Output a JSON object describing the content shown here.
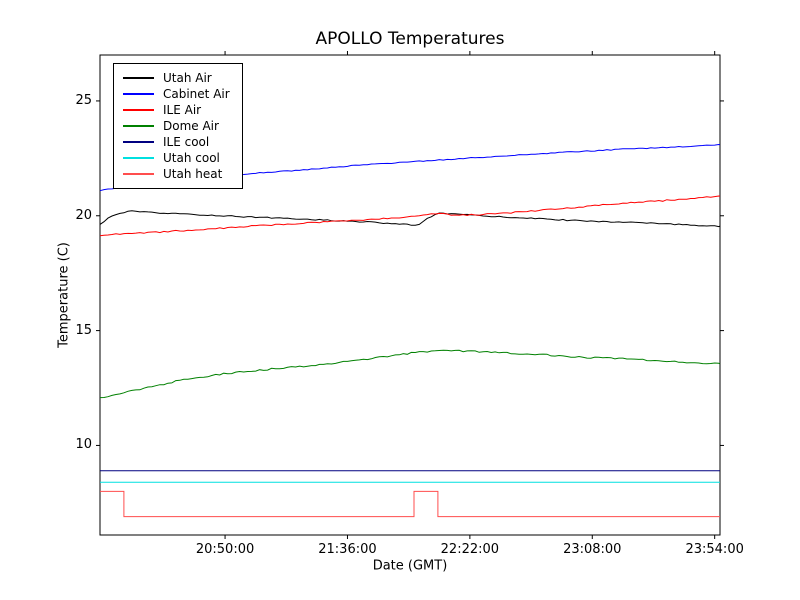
{
  "chart_data": {
    "type": "line",
    "title": "APOLLO Temperatures",
    "xlabel": "Date (GMT)",
    "ylabel": "Temperature (C)",
    "legend_position": "upper-left",
    "grid": false,
    "axis_color": "#000000",
    "background_color": "#ffffff",
    "x_unit": "minutes after 20:00:00 GMT",
    "xlim": [
      3,
      236
    ],
    "ylim": [
      6.1,
      27.0
    ],
    "y_ticks": [
      {
        "value": 10,
        "label": "10"
      },
      {
        "value": 15,
        "label": "15"
      },
      {
        "value": 20,
        "label": "20"
      },
      {
        "value": 25,
        "label": "25"
      }
    ],
    "x_ticks": [
      {
        "value": 50,
        "label": "20:50:00"
      },
      {
        "value": 96,
        "label": "21:36:00"
      },
      {
        "value": 142,
        "label": "22:22:00"
      },
      {
        "value": 188,
        "label": "23:08:00"
      },
      {
        "value": 234,
        "label": "23:54:00"
      }
    ],
    "series": [
      {
        "name": "Utah Air",
        "color": "#000000",
        "noise": 0.025,
        "points": [
          [
            3,
            19.6
          ],
          [
            6,
            19.9
          ],
          [
            10,
            20.1
          ],
          [
            14,
            20.2
          ],
          [
            25,
            20.12
          ],
          [
            45,
            20.02
          ],
          [
            70,
            19.9
          ],
          [
            90,
            19.8
          ],
          [
            105,
            19.72
          ],
          [
            115,
            19.65
          ],
          [
            120,
            19.6
          ],
          [
            122,
            19.57
          ],
          [
            124,
            19.7
          ],
          [
            127,
            19.95
          ],
          [
            131,
            20.12
          ],
          [
            134,
            20.1
          ],
          [
            145,
            20.0
          ],
          [
            160,
            19.92
          ],
          [
            180,
            19.8
          ],
          [
            200,
            19.72
          ],
          [
            220,
            19.62
          ],
          [
            236,
            19.55
          ]
        ]
      },
      {
        "name": "Cabinet Air",
        "color": "#0000ff",
        "noise": 0.02,
        "points": [
          [
            3,
            21.1
          ],
          [
            15,
            21.3
          ],
          [
            30,
            21.5
          ],
          [
            45,
            21.68
          ],
          [
            61,
            21.85
          ],
          [
            80,
            22.0
          ],
          [
            100,
            22.2
          ],
          [
            120,
            22.35
          ],
          [
            140,
            22.5
          ],
          [
            160,
            22.65
          ],
          [
            180,
            22.78
          ],
          [
            200,
            22.9
          ],
          [
            220,
            23.0
          ],
          [
            236,
            23.1
          ]
        ]
      },
      {
        "name": "ILE Air",
        "color": "#ff0000",
        "noise": 0.03,
        "points": [
          [
            3,
            19.15
          ],
          [
            20,
            19.25
          ],
          [
            40,
            19.4
          ],
          [
            60,
            19.55
          ],
          [
            80,
            19.68
          ],
          [
            95,
            19.77
          ],
          [
            110,
            19.88
          ],
          [
            120,
            19.97
          ],
          [
            126,
            20.05
          ],
          [
            131,
            20.1
          ],
          [
            136,
            20.0
          ],
          [
            145,
            20.05
          ],
          [
            160,
            20.15
          ],
          [
            180,
            20.35
          ],
          [
            200,
            20.55
          ],
          [
            220,
            20.7
          ],
          [
            236,
            20.85
          ]
        ]
      },
      {
        "name": "Dome Air",
        "color": "#008000",
        "noise": 0.035,
        "points": [
          [
            3,
            12.05
          ],
          [
            12,
            12.3
          ],
          [
            22,
            12.55
          ],
          [
            32,
            12.8
          ],
          [
            42,
            13.0
          ],
          [
            55,
            13.2
          ],
          [
            70,
            13.35
          ],
          [
            85,
            13.5
          ],
          [
            100,
            13.7
          ],
          [
            112,
            13.9
          ],
          [
            122,
            14.05
          ],
          [
            132,
            14.12
          ],
          [
            142,
            14.1
          ],
          [
            152,
            14.05
          ],
          [
            160,
            14.0
          ],
          [
            170,
            13.95
          ],
          [
            180,
            13.85
          ],
          [
            192,
            13.82
          ],
          [
            205,
            13.75
          ],
          [
            215,
            13.68
          ],
          [
            225,
            13.6
          ],
          [
            236,
            13.55
          ]
        ]
      },
      {
        "name": "ILE cool",
        "color": "#000080",
        "noise": 0,
        "points": [
          [
            3,
            8.9
          ],
          [
            236,
            8.9
          ]
        ]
      },
      {
        "name": "Utah cool",
        "color": "#00e0e0",
        "noise": 0,
        "points": [
          [
            3,
            8.4
          ],
          [
            236,
            8.4
          ]
        ]
      },
      {
        "name": "Utah heat",
        "color": "#ff4d4d",
        "noise": 0,
        "points": [
          [
            3,
            8.0
          ],
          [
            12,
            8.0
          ],
          [
            12,
            6.9
          ],
          [
            121,
            6.9
          ],
          [
            121,
            8.0
          ],
          [
            130,
            8.0
          ],
          [
            130,
            6.9
          ],
          [
            236,
            6.9
          ]
        ]
      }
    ]
  }
}
